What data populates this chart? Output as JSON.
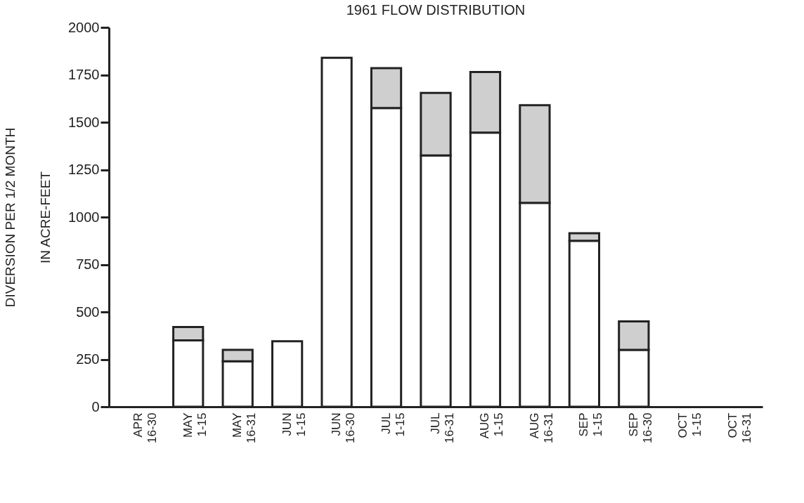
{
  "chart_data": {
    "type": "bar",
    "title": "1961 FLOW DISTRIBUTION",
    "ylabel": "DIVERSION PER 1/2 MONTH\nIN ACRE-FEET",
    "categories": [
      "APR 16-30",
      "MAY 1-15",
      "MAY 16-31",
      "JUN 1-15",
      "JUN 16-30",
      "JUL 1-15",
      "JUL 16-31",
      "AUG 1-15",
      "AUG 16-31",
      "SEP 1-15",
      "SEP 16-30",
      "OCT 1-15",
      "OCT 16-31"
    ],
    "stacked": true,
    "series": [
      {
        "color": "#ffffff",
        "values": [
          0,
          350,
          240,
          345,
          1840,
          1575,
          1325,
          1445,
          1075,
          875,
          300,
          0,
          0
        ]
      },
      {
        "color": "#cfcfcf",
        "values": [
          0,
          70,
          60,
          0,
          0,
          210,
          330,
          320,
          515,
          40,
          150,
          0,
          0
        ]
      }
    ],
    "ylim": [
      0,
      2000
    ],
    "yticks": [
      0,
      250,
      500,
      750,
      1000,
      1250,
      1500,
      1750,
      2000
    ],
    "grid": false,
    "legend": false
  }
}
